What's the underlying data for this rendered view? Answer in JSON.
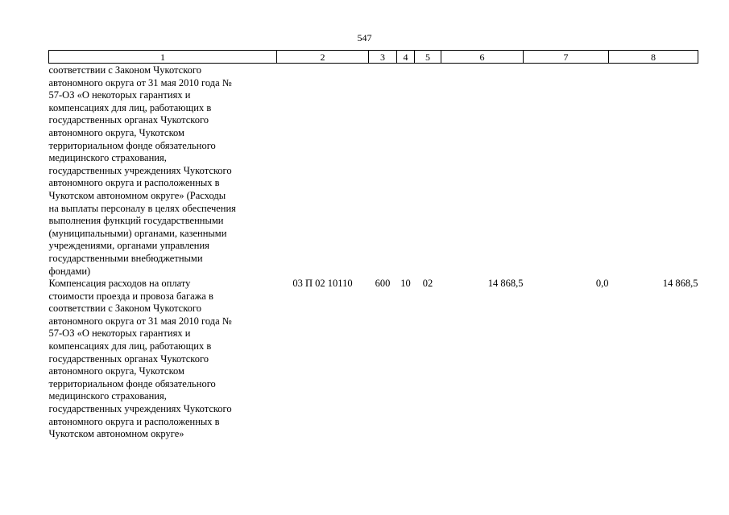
{
  "page": {
    "number": "547"
  },
  "table": {
    "headers": [
      "1",
      "2",
      "3",
      "4",
      "5",
      "6",
      "7",
      "8"
    ],
    "rows": [
      {
        "description": "соответствии с Законом Чукотского\nавтономного округа от 31 мая 2010 года №\n57-ОЗ «О некоторых гарантиях и\nкомпенсациях для лиц, работающих в\nгосударственных органах Чукотского\nавтономного округа, Чукотском\nтерриториальном фонде обязательного\nмедицинского страхования,\nгосударственных учреждениях Чукотского\nавтономного округа и расположенных в\nЧукотском автономном округе» (Расходы\nна выплаты персоналу в целях обеспечения\nвыполнения функций государственными\n(муниципальными) органами, казенными\nучреждениями, органами управления\nгосударственными внебюджетными\nфондами)",
        "code": "",
        "vr": "",
        "rz": "",
        "pr": "",
        "sum6": "",
        "sum7": "",
        "sum8": ""
      },
      {
        "description": "Компенсация расходов на оплату\nстоимости проезда и провоза багажа в\nсоответствии с Законом Чукотского\nавтономного округа от 31 мая 2010 года №\n57-ОЗ «О некоторых гарантиях и\nкомпенсациях для лиц, работающих в\nгосударственных органах Чукотского\nавтономного округа, Чукотском\nтерриториальном фонде обязательного\nмедицинского страхования,\nгосударственных учреждениях Чукотского\nавтономного округа и расположенных в\nЧукотском автономном округе»",
        "code": "03 П 02 10110",
        "vr": "600",
        "rz": "10",
        "pr": "02",
        "sum6": "14 868,5",
        "sum7": "0,0",
        "sum8": "14 868,5"
      }
    ]
  }
}
